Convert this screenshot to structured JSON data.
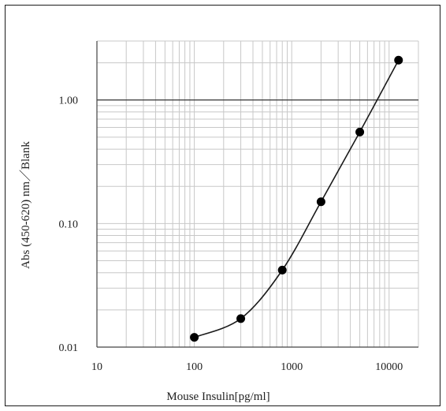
{
  "chart_data": {
    "type": "line",
    "title": "",
    "xlabel": "Mouse Insulin[pg/ml]",
    "ylabel": "Abs (450-620) nm／Blank",
    "x_scale": "log",
    "y_scale": "log",
    "xlim": [
      10,
      20000
    ],
    "ylim": [
      0.01,
      3
    ],
    "x_tick_labels": [
      "10",
      "100",
      "1000",
      "10000"
    ],
    "y_tick_labels": [
      "0.01",
      "0.10",
      "1.00"
    ],
    "grid": true,
    "legend": "none",
    "series": [
      {
        "x": [
          100,
          300,
          800,
          2000,
          5000,
          12500
        ],
        "y": [
          0.012,
          0.017,
          0.042,
          0.15,
          0.55,
          2.1
        ]
      }
    ],
    "colors": {
      "line": "#1a1a1a",
      "marker": "#000000",
      "grid": "#c8c8c8",
      "major_grid": "#333333"
    }
  }
}
